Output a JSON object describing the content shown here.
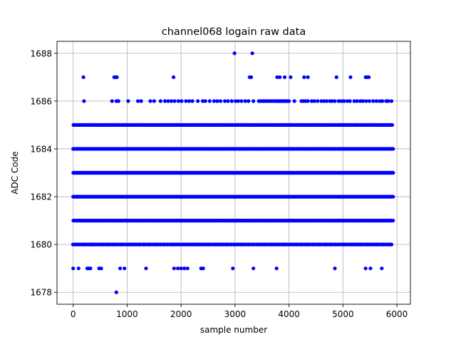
{
  "chart_data": {
    "type": "scatter",
    "title": "channel068 logain raw data",
    "xlabel": "sample number",
    "ylabel": "ADC Code",
    "xlim": [
      -300,
      6250
    ],
    "ylim": [
      1677.5,
      1688.5
    ],
    "xticks": [
      0,
      1000,
      2000,
      3000,
      4000,
      5000,
      6000
    ],
    "yticks": [
      1678,
      1680,
      1682,
      1684,
      1686,
      1688
    ],
    "grid": true,
    "marker_color": "#0000ff",
    "n_samples": 5940,
    "series": [
      {
        "dense_levels": [
          {
            "y": 1685,
            "x_min": 0,
            "x_max": 5930,
            "step": 22
          },
          {
            "y": 1684,
            "x_min": 0,
            "x_max": 5935,
            "step": 9
          },
          {
            "y": 1683,
            "x_min": 0,
            "x_max": 5935,
            "step": 7
          },
          {
            "y": 1682,
            "x_min": 0,
            "x_max": 5935,
            "step": 7
          },
          {
            "y": 1681,
            "x_min": 0,
            "x_max": 5935,
            "step": 12
          },
          {
            "y": 1680,
            "x_min": 0,
            "x_max": 5935,
            "step": 28
          }
        ],
        "points": [
          {
            "x": 2990,
            "y": 1688
          },
          {
            "x": 3320,
            "y": 1688
          },
          {
            "x": 190,
            "y": 1687
          },
          {
            "x": 760,
            "y": 1687
          },
          {
            "x": 790,
            "y": 1687
          },
          {
            "x": 810,
            "y": 1687
          },
          {
            "x": 1860,
            "y": 1687
          },
          {
            "x": 3270,
            "y": 1687
          },
          {
            "x": 3300,
            "y": 1687
          },
          {
            "x": 3780,
            "y": 1687
          },
          {
            "x": 3830,
            "y": 1687
          },
          {
            "x": 3920,
            "y": 1687
          },
          {
            "x": 4030,
            "y": 1687
          },
          {
            "x": 4280,
            "y": 1687
          },
          {
            "x": 4350,
            "y": 1687
          },
          {
            "x": 4880,
            "y": 1687
          },
          {
            "x": 5140,
            "y": 1687
          },
          {
            "x": 5420,
            "y": 1687
          },
          {
            "x": 5450,
            "y": 1687
          },
          {
            "x": 5480,
            "y": 1687
          },
          {
            "x": 200,
            "y": 1686
          },
          {
            "x": 720,
            "y": 1686
          },
          {
            "x": 800,
            "y": 1686
          },
          {
            "x": 840,
            "y": 1686
          },
          {
            "x": 1020,
            "y": 1686
          },
          {
            "x": 1200,
            "y": 1686
          },
          {
            "x": 1260,
            "y": 1686
          },
          {
            "x": 1430,
            "y": 1686
          },
          {
            "x": 1500,
            "y": 1686
          },
          {
            "x": 1620,
            "y": 1686
          },
          {
            "x": 1700,
            "y": 1686
          },
          {
            "x": 1760,
            "y": 1686
          },
          {
            "x": 1820,
            "y": 1686
          },
          {
            "x": 1880,
            "y": 1686
          },
          {
            "x": 1950,
            "y": 1686
          },
          {
            "x": 2010,
            "y": 1686
          },
          {
            "x": 2090,
            "y": 1686
          },
          {
            "x": 2150,
            "y": 1686
          },
          {
            "x": 2210,
            "y": 1686
          },
          {
            "x": 2310,
            "y": 1686
          },
          {
            "x": 2400,
            "y": 1686
          },
          {
            "x": 2450,
            "y": 1686
          },
          {
            "x": 2530,
            "y": 1686
          },
          {
            "x": 2610,
            "y": 1686
          },
          {
            "x": 2670,
            "y": 1686
          },
          {
            "x": 2730,
            "y": 1686
          },
          {
            "x": 2810,
            "y": 1686
          },
          {
            "x": 2870,
            "y": 1686
          },
          {
            "x": 2940,
            "y": 1686
          },
          {
            "x": 3010,
            "y": 1686
          },
          {
            "x": 3060,
            "y": 1686
          },
          {
            "x": 3120,
            "y": 1686
          },
          {
            "x": 3190,
            "y": 1686
          },
          {
            "x": 3250,
            "y": 1686
          },
          {
            "x": 3340,
            "y": 1686
          },
          {
            "x": 3440,
            "y": 1686
          },
          {
            "x": 3480,
            "y": 1686
          },
          {
            "x": 3520,
            "y": 1686
          },
          {
            "x": 3560,
            "y": 1686
          },
          {
            "x": 3600,
            "y": 1686
          },
          {
            "x": 3640,
            "y": 1686
          },
          {
            "x": 3680,
            "y": 1686
          },
          {
            "x": 3720,
            "y": 1686
          },
          {
            "x": 3760,
            "y": 1686
          },
          {
            "x": 3790,
            "y": 1686
          },
          {
            "x": 3820,
            "y": 1686
          },
          {
            "x": 3850,
            "y": 1686
          },
          {
            "x": 3880,
            "y": 1686
          },
          {
            "x": 3910,
            "y": 1686
          },
          {
            "x": 3940,
            "y": 1686
          },
          {
            "x": 3970,
            "y": 1686
          },
          {
            "x": 4000,
            "y": 1686
          },
          {
            "x": 4100,
            "y": 1686
          },
          {
            "x": 4230,
            "y": 1686
          },
          {
            "x": 4270,
            "y": 1686
          },
          {
            "x": 4310,
            "y": 1686
          },
          {
            "x": 4350,
            "y": 1686
          },
          {
            "x": 4420,
            "y": 1686
          },
          {
            "x": 4470,
            "y": 1686
          },
          {
            "x": 4530,
            "y": 1686
          },
          {
            "x": 4600,
            "y": 1686
          },
          {
            "x": 4650,
            "y": 1686
          },
          {
            "x": 4700,
            "y": 1686
          },
          {
            "x": 4760,
            "y": 1686
          },
          {
            "x": 4800,
            "y": 1686
          },
          {
            "x": 4850,
            "y": 1686
          },
          {
            "x": 4920,
            "y": 1686
          },
          {
            "x": 4970,
            "y": 1686
          },
          {
            "x": 5020,
            "y": 1686
          },
          {
            "x": 5080,
            "y": 1686
          },
          {
            "x": 5130,
            "y": 1686
          },
          {
            "x": 5210,
            "y": 1686
          },
          {
            "x": 5260,
            "y": 1686
          },
          {
            "x": 5320,
            "y": 1686
          },
          {
            "x": 5370,
            "y": 1686
          },
          {
            "x": 5430,
            "y": 1686
          },
          {
            "x": 5490,
            "y": 1686
          },
          {
            "x": 5560,
            "y": 1686
          },
          {
            "x": 5620,
            "y": 1686
          },
          {
            "x": 5680,
            "y": 1686
          },
          {
            "x": 5730,
            "y": 1686
          },
          {
            "x": 5800,
            "y": 1686
          },
          {
            "x": 5840,
            "y": 1686
          },
          {
            "x": 5900,
            "y": 1686
          },
          {
            "x": 0,
            "y": 1679
          },
          {
            "x": 100,
            "y": 1679
          },
          {
            "x": 260,
            "y": 1679
          },
          {
            "x": 290,
            "y": 1679
          },
          {
            "x": 320,
            "y": 1679
          },
          {
            "x": 480,
            "y": 1679
          },
          {
            "x": 520,
            "y": 1679
          },
          {
            "x": 870,
            "y": 1679
          },
          {
            "x": 950,
            "y": 1679
          },
          {
            "x": 1350,
            "y": 1679
          },
          {
            "x": 1870,
            "y": 1679
          },
          {
            "x": 1940,
            "y": 1679
          },
          {
            "x": 2000,
            "y": 1679
          },
          {
            "x": 2060,
            "y": 1679
          },
          {
            "x": 2120,
            "y": 1679
          },
          {
            "x": 2370,
            "y": 1679
          },
          {
            "x": 2410,
            "y": 1679
          },
          {
            "x": 2960,
            "y": 1679
          },
          {
            "x": 3340,
            "y": 1679
          },
          {
            "x": 3770,
            "y": 1679
          },
          {
            "x": 4850,
            "y": 1679
          },
          {
            "x": 5420,
            "y": 1679
          },
          {
            "x": 5510,
            "y": 1679
          },
          {
            "x": 5720,
            "y": 1679
          },
          {
            "x": 800,
            "y": 1678
          }
        ]
      }
    ]
  }
}
